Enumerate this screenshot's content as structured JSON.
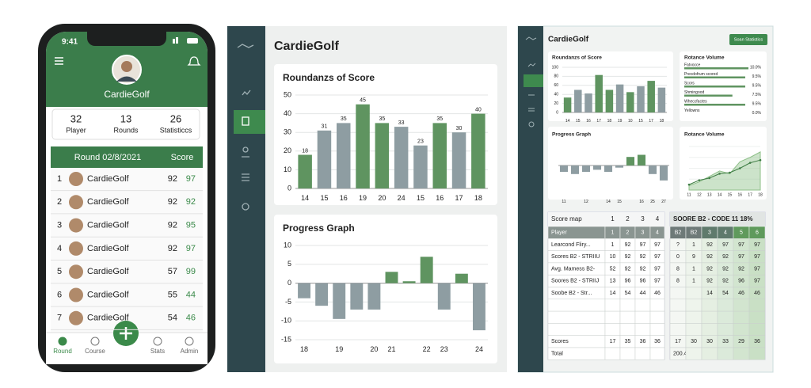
{
  "phone": {
    "time": "9:41",
    "title": "CardieGolf",
    "stats": [
      {
        "value": 32,
        "label": "Player"
      },
      {
        "value": 13,
        "label": "Rounds"
      },
      {
        "value": 26,
        "label": "Statisticcs"
      }
    ],
    "table": {
      "header": [
        "Round 02/8/2021",
        "Score"
      ],
      "rows": [
        [
          1,
          "CardieGolf",
          92,
          97
        ],
        [
          2,
          "CardieGolf",
          92,
          92
        ],
        [
          3,
          "CardieGolf",
          92,
          95
        ],
        [
          4,
          "CardieGolf",
          92,
          97
        ],
        [
          5,
          "CardieGolf",
          57,
          99
        ],
        [
          6,
          "CardieGolf",
          55,
          44
        ],
        [
          7,
          "CardieGolf",
          54,
          46
        ]
      ]
    },
    "nav": [
      "Round",
      "Course",
      "Stats",
      "Admin"
    ]
  },
  "tablet": {
    "title": "CardieGolf",
    "charts": [
      {
        "type": "bar",
        "title": "Roundanzs of Score",
        "categories": [
          "14",
          "15",
          "16",
          "19",
          "20",
          "24",
          "15",
          "16",
          "17",
          "18"
        ],
        "values": [
          18,
          31,
          35,
          45,
          35,
          33,
          23,
          35,
          30,
          40
        ],
        "colors": [
          "#5f9460",
          "#8e9da2",
          "#8e9da2",
          "#5f9460",
          "#5f9460",
          "#8e9da2",
          "#8e9da2",
          "#5f9460",
          "#8e9da2",
          "#5f9460"
        ],
        "ylim": [
          0,
          50
        ],
        "yticks": [
          0,
          10,
          20,
          30,
          40,
          50
        ],
        "show_value_labels": true
      },
      {
        "type": "bar",
        "title": "Progress Graph",
        "categories": [
          "18",
          null,
          "19",
          null,
          "20",
          "21",
          null,
          "22",
          "23",
          null,
          "24"
        ],
        "values": [
          -4,
          -6,
          -9.5,
          -7,
          -7,
          3,
          0.5,
          7,
          -7,
          2.5,
          -12.5
        ],
        "positive_color": "#5f9460",
        "negative_color": "#8e9da2",
        "ylim": [
          -15,
          10
        ],
        "yticks": [
          -15,
          -10,
          -5,
          0,
          5,
          10
        ]
      }
    ]
  },
  "desktop": {
    "title": "CardieGolf",
    "button": "Soan Statistics",
    "charts": [
      {
        "type": "bar",
        "title": "Roundanzs of Score",
        "categories": [
          "14",
          "15",
          "16",
          "17",
          "18",
          "19",
          "10",
          "15",
          "17",
          "18"
        ],
        "values": [
          33,
          50,
          42,
          83,
          50,
          62,
          45,
          58,
          70,
          55
        ],
        "colors": [
          "#5f9460",
          "#8e9da2",
          "#8e9da2",
          "#5f9460",
          "#5f9460",
          "#8e9da2",
          "#5f9460",
          "#8e9da2",
          "#5f9460",
          "#8e9da2"
        ],
        "ylim": [
          0,
          100
        ],
        "yticks": [
          0,
          20,
          40,
          60,
          80,
          100
        ]
      },
      {
        "type": "list",
        "title": "Rotance Volume",
        "items": [
          {
            "name": "Fatvocce",
            "value": 10.0,
            "label": "10.0%"
          },
          {
            "name": "Precdofrum scored",
            "value": 9.5,
            "label": "9.5%"
          },
          {
            "name": "Scors",
            "value": 9.5,
            "label": "9.5%"
          },
          {
            "name": "Shmingood",
            "value": 7.5,
            "label": "7.5%"
          },
          {
            "name": "Wheccfactes",
            "value": 9.5,
            "label": "9.5%"
          },
          {
            "name": "Yellowns",
            "value": 0.0,
            "label": "0.0%"
          }
        ],
        "xlim": [
          0,
          10
        ],
        "color": "#5f9460"
      },
      {
        "type": "bar",
        "title": "Progress Graph",
        "categories": [
          "11",
          null,
          "12",
          null,
          "14",
          "15",
          null,
          "16",
          "25",
          "27"
        ],
        "values": [
          -3,
          -4,
          -3,
          -2,
          -3,
          -1,
          4,
          5,
          -4,
          -7
        ],
        "positive_color": "#5f9460",
        "negative_color": "#8e9da2",
        "ylim": [
          -10,
          10
        ]
      },
      {
        "type": "line",
        "title": "Rotance Volume",
        "categories": [
          "11",
          "12",
          "13",
          "14",
          "15",
          "16",
          "17",
          "18"
        ],
        "series": [
          {
            "color": "#8fc08a",
            "values": [
              8,
              15,
              25,
              35,
              30,
              52,
              60,
              70
            ],
            "area": true
          },
          {
            "color": "#3f7d45",
            "values": [
              10,
              18,
              22,
              30,
              32,
              40,
              50,
              55
            ]
          }
        ],
        "ylim": [
          0,
          80
        ]
      }
    ],
    "tables": [
      {
        "title": "Score map",
        "title_cols": [
          1,
          2,
          3,
          4
        ],
        "header": [
          "Player",
          1,
          2,
          3,
          4
        ],
        "rows": [
          [
            "Learcond Fliry...",
            1,
            92,
            97,
            97
          ],
          [
            "Scores B2 - STRIIU",
            10,
            92,
            92,
            97
          ],
          [
            "Avg. Mamess B2-",
            52,
            92,
            92,
            97
          ],
          [
            "Soores B2 - STRIIJ",
            13,
            96,
            96,
            97
          ],
          [
            "Soobe B2 - Str...",
            14,
            54,
            44,
            46
          ]
        ],
        "footer": [
          [
            "Scores",
            17,
            35,
            36,
            36
          ],
          [
            "Total"
          ]
        ]
      },
      {
        "title": "SOORE B2 - CODE 11 18%",
        "header": [
          "B2",
          "B2",
          3,
          4,
          5,
          6
        ],
        "rows": [
          [
            "?",
            1,
            92,
            97,
            97,
            97
          ],
          [
            0,
            9,
            92,
            92,
            97,
            97
          ],
          [
            8,
            1,
            92,
            92,
            92,
            97
          ],
          [
            8,
            1,
            92,
            92,
            96,
            97
          ],
          [
            null,
            null,
            14,
            54,
            46,
            46
          ]
        ],
        "footer": [
          [
            17,
            30,
            30,
            33,
            29,
            36
          ],
          [
            200.4
          ]
        ]
      }
    ]
  }
}
